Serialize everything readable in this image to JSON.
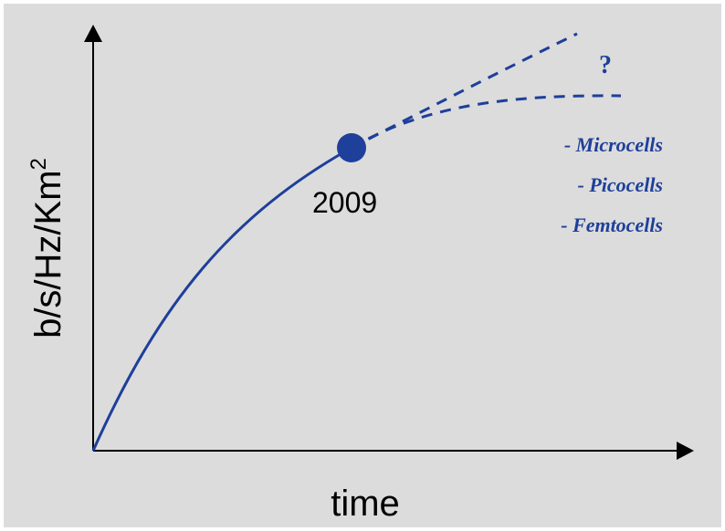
{
  "diagram": {
    "y_axis_label": "b/s/Hz/Km",
    "y_axis_superscript": "2",
    "x_axis_label": "time",
    "point_label": "2009",
    "question_mark": "?",
    "notes": [
      "- Microcells",
      "- Picocells",
      "- Femtocells"
    ],
    "colors": {
      "background": "#dcdcdc",
      "curve": "#1e3f9a",
      "axes": "#000000"
    }
  }
}
